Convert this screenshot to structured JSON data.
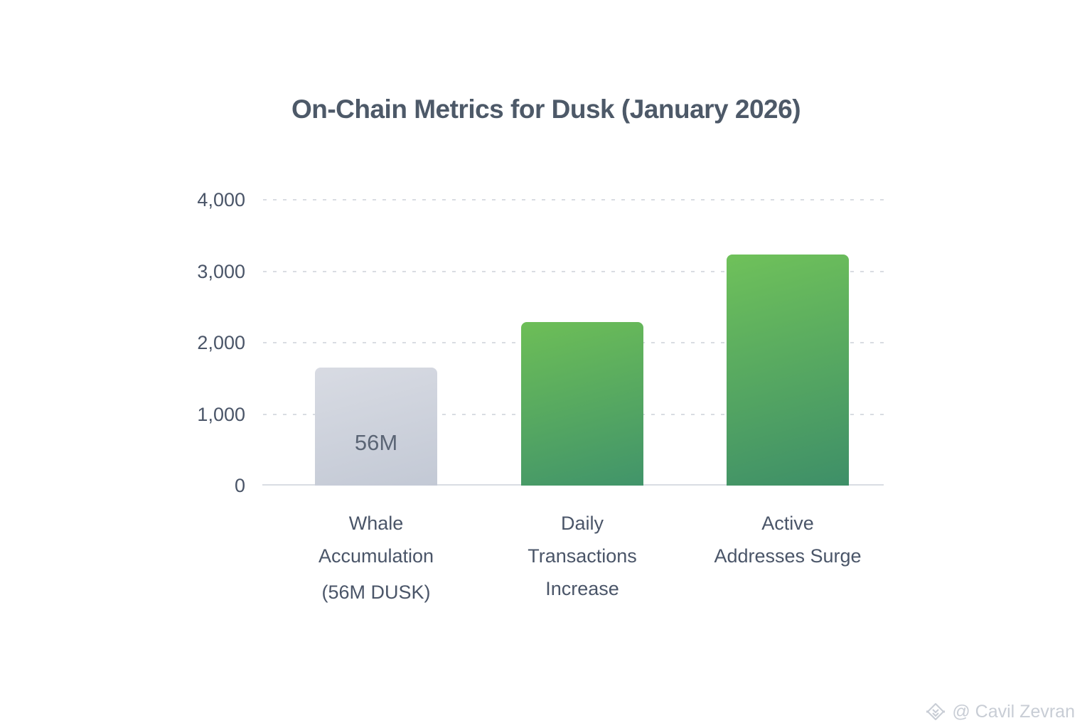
{
  "chart_data": {
    "type": "bar",
    "title": "On-Chain Metrics for Dusk (January 2026)",
    "categories": [
      {
        "lines": [
          "Whale",
          "Accumulation",
          "(56M DUSK)"
        ]
      },
      {
        "lines": [
          "Daily",
          "Transactions",
          "Increase"
        ]
      },
      {
        "lines": [
          "Active",
          "Addresses Surge"
        ]
      }
    ],
    "values": [
      1650,
      2290,
      3230
    ],
    "bar_value_labels": [
      "56M",
      "",
      ""
    ],
    "bar_gradients": [
      [
        "#d8dbe3",
        "#c3c9d5"
      ],
      [
        "#6dbe57",
        "#41946a"
      ],
      [
        "#6fc15a",
        "#3e8f68"
      ]
    ],
    "ylim": [
      0,
      4000
    ],
    "yticks": [
      {
        "value": 0,
        "label": "0"
      },
      {
        "value": 1000,
        "label": "1,000"
      },
      {
        "value": 2000,
        "label": "2,000"
      },
      {
        "value": 3000,
        "label": "3,000"
      },
      {
        "value": 4000,
        "label": "4,000"
      }
    ],
    "xlabel": "",
    "ylabel": "",
    "grid": "horizontal-dashed",
    "legend": "none"
  },
  "watermark": {
    "icon": "diamond-gem-icon",
    "text": "@ Cavil Zevran"
  },
  "colors": {
    "background": "#ffffff",
    "title_text": "#4d5968",
    "axis_text": "#4a5568",
    "grid_line": "#d9dce2",
    "baseline": "#d9dde3",
    "bar_inner_label": "#5b6575",
    "watermark": "#c8cdd5"
  }
}
